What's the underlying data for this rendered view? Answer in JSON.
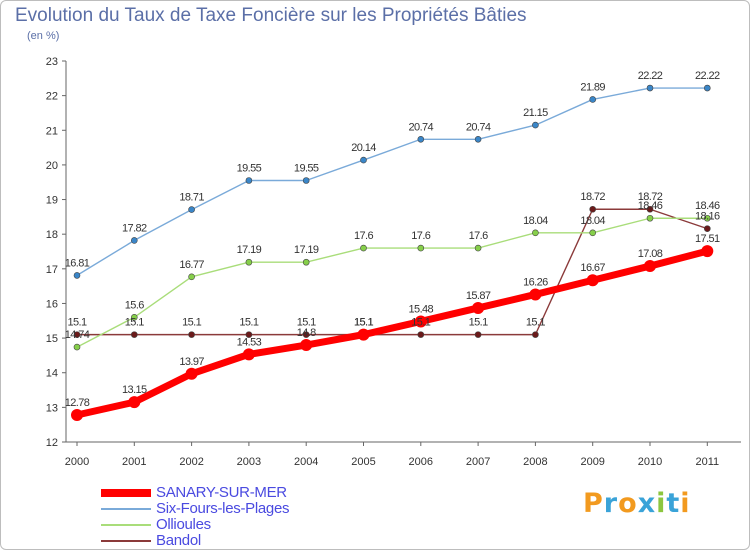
{
  "title": "Evolution du Taux de Taxe Foncière sur les Propriétés Bâties",
  "unit_label": "(en %)",
  "logo": {
    "letters": [
      "P",
      "r",
      "o",
      "x",
      "i",
      "t",
      "i"
    ],
    "colors": [
      "#f29a1f",
      "#3aa3d8",
      "#f29a1f",
      "#3aa3d8",
      "#8cc63f",
      "#3aa3d8",
      "#f29a1f"
    ]
  },
  "chart_data": {
    "type": "line",
    "title": "Evolution du Taux de Taxe Foncière sur les Propriétés Bâties",
    "ylabel": "(en %)",
    "x": [
      "2000",
      "2001",
      "2002",
      "2003",
      "2004",
      "2005",
      "2006",
      "2007",
      "2008",
      "2009",
      "2010",
      "2011"
    ],
    "ylim": [
      12,
      23
    ],
    "yticks": [
      "12",
      "13",
      "14",
      "15",
      "16",
      "17",
      "18",
      "19",
      "20",
      "21",
      "22",
      "23"
    ],
    "grid": false,
    "legend_position": "bottom-left",
    "series": [
      {
        "name": "SANARY-SUR-MER",
        "color": "#ff0000",
        "marker_color": "#ff0000",
        "values": [
          12.78,
          13.15,
          13.97,
          14.53,
          14.8,
          15.1,
          15.48,
          15.87,
          16.26,
          16.67,
          17.08,
          17.51
        ],
        "labels": [
          "12.78",
          "13.15",
          "13.97",
          "14.53",
          "14.8",
          "15.1",
          "15.48",
          "15.87",
          "16.26",
          "16.67",
          "17.08",
          "17.51"
        ]
      },
      {
        "name": "Six-Fours-les-Plages",
        "color": "#7aaad9",
        "marker_color": "#3a86c8",
        "values": [
          16.81,
          17.82,
          18.71,
          19.55,
          19.55,
          20.14,
          20.74,
          20.74,
          21.15,
          21.89,
          22.22,
          22.22
        ],
        "labels": [
          "16.81",
          "17.82",
          "18.71",
          "19.55",
          "19.55",
          "20.14",
          "20.74",
          "20.74",
          "21.15",
          "21.89",
          "22.22",
          "22.22"
        ]
      },
      {
        "name": "Ollioules",
        "color": "#a9dd7a",
        "marker_color": "#86cf4a",
        "values": [
          14.74,
          15.6,
          16.77,
          17.19,
          17.19,
          17.6,
          17.6,
          17.6,
          18.04,
          18.04,
          18.46,
          18.46
        ],
        "labels": [
          "14.74",
          "15.6",
          "16.77",
          "17.19",
          "17.19",
          "17.6",
          "17.6",
          "17.6",
          "18.04",
          "18.04",
          "18.46",
          "18.46"
        ]
      },
      {
        "name": "Bandol",
        "color": "#8b3a3a",
        "marker_color": "#6b1a1a",
        "values": [
          15.1,
          15.1,
          15.1,
          15.1,
          15.1,
          15.1,
          15.1,
          15.1,
          15.1,
          18.72,
          18.72,
          18.16
        ],
        "labels": [
          "15.1",
          "15.1",
          "15.1",
          "15.1",
          "15.1",
          "15.1",
          "15.1",
          "15.1",
          "15.1",
          "18.72",
          "18.72",
          "18.16"
        ]
      }
    ]
  }
}
